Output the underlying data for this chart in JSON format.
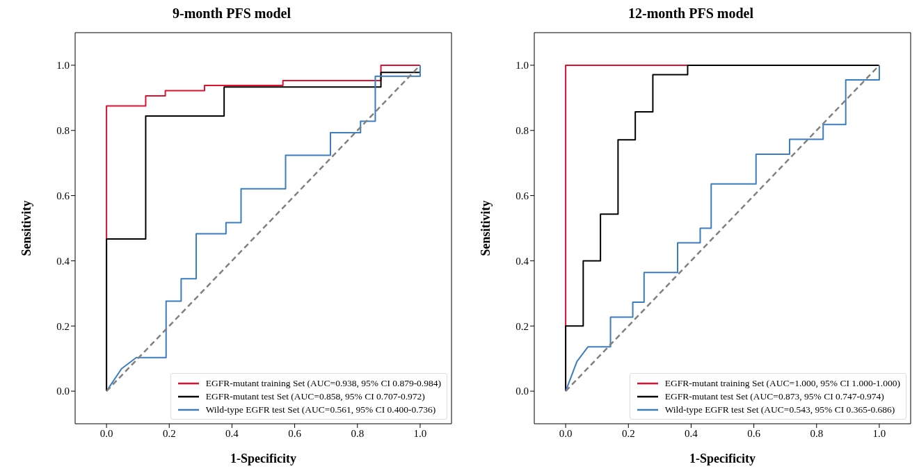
{
  "chart_data": [
    {
      "type": "line",
      "title": "9-month PFS model",
      "xlabel": "1-Specificity",
      "ylabel": "Sensitivity",
      "xlim": [
        -0.1,
        1.1
      ],
      "ylim": [
        -0.1,
        1.1
      ],
      "xticks": [
        {
          "value": 0,
          "label": "0.0"
        },
        {
          "value": 0.2,
          "label": "0.2"
        },
        {
          "value": 0.4,
          "label": "0.4"
        },
        {
          "value": 0.6,
          "label": "0.6"
        },
        {
          "value": 0.8,
          "label": "0.8"
        },
        {
          "value": 1,
          "label": "1.0"
        }
      ],
      "yticks": [
        {
          "value": 0,
          "label": "0.0"
        },
        {
          "value": 0.2,
          "label": "0.2"
        },
        {
          "value": 0.4,
          "label": "0.4"
        },
        {
          "value": 0.6,
          "label": "0.6"
        },
        {
          "value": 0.8,
          "label": "0.8"
        },
        {
          "value": 1,
          "label": "1.0"
        }
      ],
      "grid": false,
      "legend": "bottom right",
      "series": [
        {
          "name": "EGFR-mutant training Set (AUC=0.938, 95% CI 0.879-0.984)",
          "color": "#e0102f",
          "x": [
            0,
            0,
            0.125,
            0.125,
            0.1875,
            0.1875,
            0.3125,
            0.3125,
            0.5625,
            0.5625,
            0.875,
            0.875,
            1
          ],
          "values": [
            0,
            0.875,
            0.875,
            0.906,
            0.906,
            0.922,
            0.922,
            0.938,
            0.938,
            0.953,
            0.953,
            1,
            1
          ]
        },
        {
          "name": "EGFR-mutant test Set (AUC=0.858, 95% CI 0.707-0.972)",
          "color": "#000000",
          "x": [
            0,
            0,
            0.125,
            0.125,
            0.375,
            0.375,
            0.875,
            0.875,
            1
          ],
          "values": [
            0,
            0.467,
            0.467,
            0.844,
            0.844,
            0.933,
            0.933,
            0.978,
            0.978
          ]
        },
        {
          "name": "Wild-type EGFR test Set (AUC=0.561, 95% CI 0.400-0.736)",
          "color": "#3a7dbf",
          "x": [
            0,
            0.048,
            0.095,
            0.19,
            0.19,
            0.238,
            0.238,
            0.286,
            0.286,
            0.381,
            0.381,
            0.429,
            0.429,
            0.571,
            0.571,
            0.714,
            0.714,
            0.81,
            0.81,
            0.857,
            0.857,
            1,
            1
          ],
          "values": [
            0,
            0.069,
            0.103,
            0.103,
            0.276,
            0.276,
            0.345,
            0.345,
            0.483,
            0.483,
            0.517,
            0.517,
            0.621,
            0.621,
            0.724,
            0.724,
            0.793,
            0.793,
            0.828,
            0.828,
            0.966,
            0.966,
            1
          ]
        },
        {
          "color": "#808080",
          "line_style": "dashed",
          "x": [
            0,
            1
          ],
          "values": [
            0,
            1
          ]
        }
      ]
    },
    {
      "type": "line",
      "title": "12-month PFS model",
      "xlabel": "1-Specificity",
      "ylabel": "Sensitivity",
      "xlim": [
        -0.1,
        1.1
      ],
      "ylim": [
        -0.1,
        1.1
      ],
      "xticks": [
        {
          "value": 0,
          "label": "0.0"
        },
        {
          "value": 0.2,
          "label": "0.2"
        },
        {
          "value": 0.4,
          "label": "0.4"
        },
        {
          "value": 0.6,
          "label": "0.6"
        },
        {
          "value": 0.8,
          "label": "0.8"
        },
        {
          "value": 1,
          "label": "1.0"
        }
      ],
      "yticks": [
        {
          "value": 0,
          "label": "0.0"
        },
        {
          "value": 0.2,
          "label": "0.2"
        },
        {
          "value": 0.4,
          "label": "0.4"
        },
        {
          "value": 0.6,
          "label": "0.6"
        },
        {
          "value": 0.8,
          "label": "0.8"
        },
        {
          "value": 1,
          "label": "1.0"
        }
      ],
      "grid": false,
      "legend": "bottom right",
      "series": [
        {
          "name": "EGFR-mutant training Set (AUC=1.000, 95% CI 1.000-1.000)",
          "color": "#e0102f",
          "x": [
            0,
            0,
            0.389
          ],
          "values": [
            0,
            1,
            1
          ]
        },
        {
          "name": "EGFR-mutant test Set (AUC=0.873, 95% CI 0.747-0.974)",
          "color": "#000000",
          "x": [
            0,
            0,
            0.056,
            0.056,
            0.111,
            0.111,
            0.167,
            0.167,
            0.222,
            0.222,
            0.278,
            0.278,
            0.389,
            0.389,
            1
          ],
          "values": [
            0,
            0.2,
            0.2,
            0.4,
            0.4,
            0.543,
            0.543,
            0.771,
            0.771,
            0.857,
            0.857,
            0.971,
            0.971,
            1,
            1
          ]
        },
        {
          "name": "Wild-type EGFR test Set (AUC=0.543, 95% CI 0.365-0.686)",
          "color": "#3a7dbf",
          "x": [
            0,
            0.036,
            0.071,
            0.143,
            0.143,
            0.214,
            0.214,
            0.25,
            0.25,
            0.357,
            0.357,
            0.429,
            0.429,
            0.464,
            0.464,
            0.607,
            0.607,
            0.714,
            0.714,
            0.821,
            0.821,
            0.893,
            0.893,
            1,
            1
          ],
          "values": [
            0,
            0.091,
            0.136,
            0.136,
            0.227,
            0.227,
            0.273,
            0.273,
            0.364,
            0.364,
            0.455,
            0.455,
            0.5,
            0.5,
            0.636,
            0.636,
            0.727,
            0.727,
            0.773,
            0.773,
            0.818,
            0.818,
            0.955,
            0.955,
            1
          ]
        },
        {
          "color": "#808080",
          "line_style": "dashed",
          "x": [
            0,
            1
          ],
          "values": [
            0,
            1
          ]
        }
      ]
    }
  ]
}
